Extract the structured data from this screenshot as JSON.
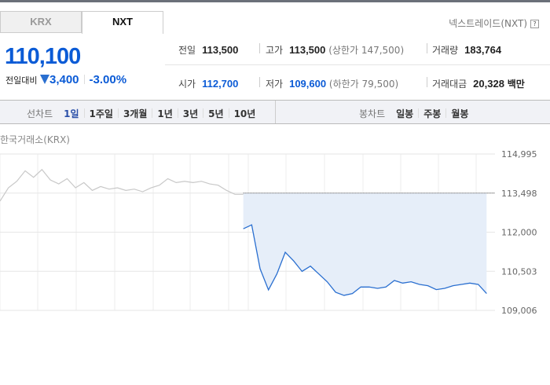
{
  "tabs": [
    {
      "label": "KRX",
      "active": false
    },
    {
      "label": "NXT",
      "active": true
    }
  ],
  "exchange_label": "넥스트레이드(NXT)",
  "help_icon": "?",
  "price": "110,100",
  "change_label": "전일대비",
  "change_direction": "down",
  "change_value": "3,400",
  "change_percent": "-3.00%",
  "stats": {
    "prev": {
      "label": "전일",
      "value": "113,500"
    },
    "high": {
      "label": "고가",
      "value": "113,500",
      "sub": "(상한가 147,500)"
    },
    "volume": {
      "label": "거래량",
      "value": "183,764"
    },
    "open": {
      "label": "시가",
      "value": "112,700"
    },
    "low": {
      "label": "저가",
      "value": "109,600",
      "sub": "(하한가 79,500)"
    },
    "amount": {
      "label": "거래대금",
      "value": "20,328",
      "unit": "백만"
    }
  },
  "line_chart_tabs": {
    "label": "선차트",
    "items": [
      "1일",
      "1주일",
      "3개월",
      "1년",
      "3년",
      "5년",
      "10년"
    ],
    "active": 0
  },
  "candle_chart_tabs": {
    "label": "봉차트",
    "items": [
      "일봉",
      "주봉",
      "월봉"
    ]
  },
  "chart_source": "한국거래소(KRX)",
  "colors": {
    "accent": "#0b5bd6",
    "krx_line": "#c8c8c8",
    "nxt_line": "#2a6fd0",
    "fill": "#e6eef9"
  },
  "chart_data": {
    "type": "line",
    "y_ticks": [
      "114,995",
      "113,498",
      "112,000",
      "110,503",
      "109,006"
    ],
    "ylim": [
      109006,
      114995
    ],
    "reference": 113498,
    "grid": true,
    "series": [
      {
        "values": [
          113190,
          113700,
          113950,
          114350,
          114100,
          114400,
          114000,
          113850,
          114050,
          113700,
          113900,
          113600,
          113750,
          113650,
          113700,
          113600,
          113650,
          113550,
          113700,
          113800,
          114050,
          113900,
          113950,
          113900,
          113950,
          113850,
          113800,
          113600,
          113450,
          113450
        ]
      },
      {
        "values": [
          112130,
          112280,
          110600,
          109790,
          110400,
          111230,
          110900,
          110500,
          110700,
          110400,
          110100,
          109700,
          109580,
          109650,
          109900,
          109900,
          109850,
          109900,
          110150,
          110050,
          110100,
          110000,
          109950,
          109800,
          109850,
          109950,
          110000,
          110050,
          110000,
          109650
        ]
      }
    ]
  }
}
